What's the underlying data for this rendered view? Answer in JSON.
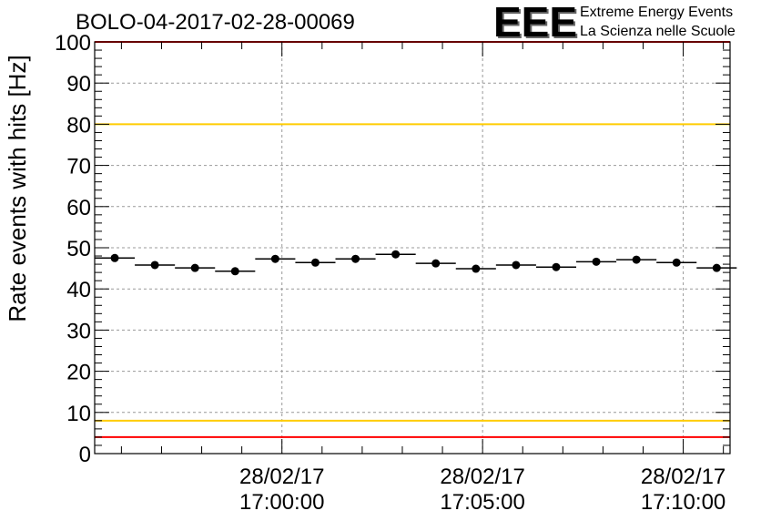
{
  "header": {
    "run_title": "BOLO-04-2017-02-28-00069",
    "logo_text": "EEE",
    "logo_line1": "Extreme Energy Events",
    "logo_line2": "La Scienza nelle Scuole"
  },
  "colors": {
    "logo_blue": "#0000ff",
    "limit_red": "#ff0000",
    "limit_yellow": "#ffcc00",
    "grid": "#999999"
  },
  "chart_data": {
    "type": "scatter",
    "title": "BOLO-04-2017-02-28-00069",
    "xlabel": "",
    "ylabel": "Rate events with hits [Hz]",
    "ylim": [
      0,
      100
    ],
    "xlim": [
      "2017-02-28 16:55:20",
      "2017-02-28 17:11:10"
    ],
    "y_ticks": [
      "0",
      "10",
      "20",
      "30",
      "40",
      "50",
      "60",
      "70",
      "80",
      "90",
      "100"
    ],
    "x_ticks": [
      {
        "time": "2017-02-28 17:00:00",
        "date_label": "28/02/17",
        "time_label": "17:00:00"
      },
      {
        "time": "2017-02-28 17:05:00",
        "date_label": "28/02/17",
        "time_label": "17:05:00"
      },
      {
        "time": "2017-02-28 17:10:00",
        "date_label": "28/02/17",
        "time_label": "17:10:00"
      }
    ],
    "grid": true,
    "bin_width_seconds": 60,
    "points": [
      {
        "x": "2017-02-28 16:55:50",
        "y": 47.5
      },
      {
        "x": "2017-02-28 16:56:50",
        "y": 45.8
      },
      {
        "x": "2017-02-28 16:57:50",
        "y": 45.1
      },
      {
        "x": "2017-02-28 16:58:50",
        "y": 44.3
      },
      {
        "x": "2017-02-28 16:59:50",
        "y": 47.3
      },
      {
        "x": "2017-02-28 17:00:50",
        "y": 46.4
      },
      {
        "x": "2017-02-28 17:01:50",
        "y": 47.3
      },
      {
        "x": "2017-02-28 17:02:50",
        "y": 48.4
      },
      {
        "x": "2017-02-28 17:03:50",
        "y": 46.2
      },
      {
        "x": "2017-02-28 17:04:50",
        "y": 44.9
      },
      {
        "x": "2017-02-28 17:05:50",
        "y": 45.8
      },
      {
        "x": "2017-02-28 17:06:50",
        "y": 45.3
      },
      {
        "x": "2017-02-28 17:07:50",
        "y": 46.6
      },
      {
        "x": "2017-02-28 17:08:50",
        "y": 47.1
      },
      {
        "x": "2017-02-28 17:09:50",
        "y": 46.4
      },
      {
        "x": "2017-02-28 17:10:50",
        "y": 45.1
      }
    ],
    "limit_lines": [
      {
        "y": 100,
        "color": "#ff0000"
      },
      {
        "y": 80,
        "color": "#ffcc00"
      },
      {
        "y": 8,
        "color": "#ffcc00"
      },
      {
        "y": 4,
        "color": "#ff0000"
      }
    ]
  }
}
